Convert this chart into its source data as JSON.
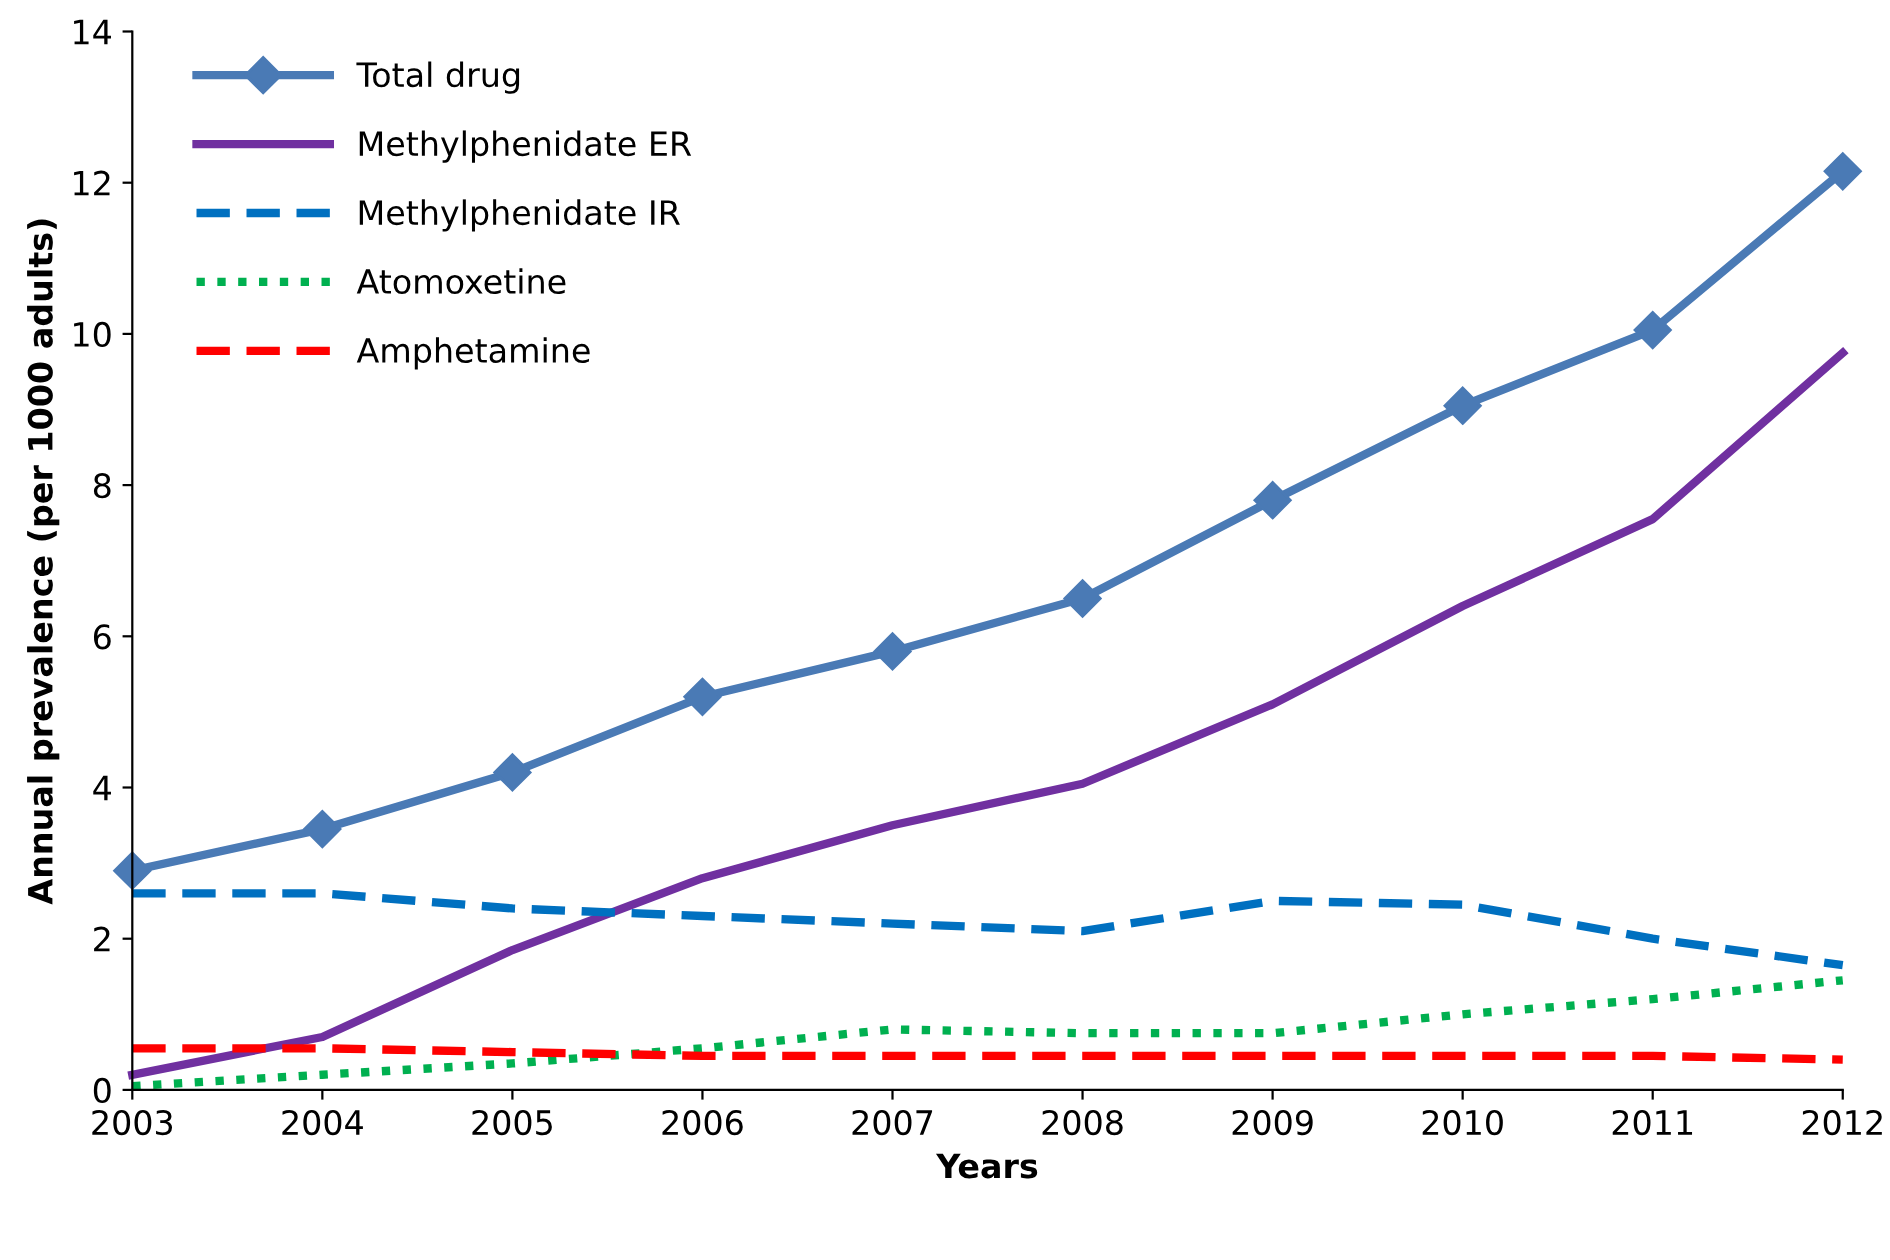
{
  "chart_data": {
    "type": "line",
    "xlabel": "Years",
    "ylabel": "Annual prevalence (per 1000 adults)",
    "x": [
      2003,
      2004,
      2005,
      2006,
      2007,
      2008,
      2009,
      2010,
      2011,
      2012
    ],
    "xlim": [
      2003,
      2012
    ],
    "xticks": [
      2003,
      2004,
      2005,
      2006,
      2007,
      2008,
      2009,
      2010,
      2011,
      2012
    ],
    "ylim": [
      0,
      14
    ],
    "yticks": [
      0,
      2,
      4,
      6,
      8,
      10,
      12,
      14
    ],
    "grid": false,
    "legend": "top left",
    "series": [
      {
        "name": "Total drug",
        "color": "#4a7ab5",
        "marker": "diamond",
        "line_style": "solid",
        "values": [
          2.9,
          3.45,
          4.2,
          5.2,
          5.8,
          6.5,
          7.8,
          9.05,
          10.05,
          12.15
        ]
      },
      {
        "name": "Methylphenidate ER",
        "color": "#7030a0",
        "marker": "none",
        "line_style": "solid",
        "values": [
          0.2,
          0.7,
          1.85,
          2.8,
          3.5,
          4.05,
          5.1,
          6.4,
          7.55,
          9.75
        ]
      },
      {
        "name": "Methylphenidate IR",
        "color": "#0070c0",
        "marker": "none",
        "line_style": "dashed",
        "values": [
          2.6,
          2.6,
          2.4,
          2.3,
          2.2,
          2.1,
          2.5,
          2.45,
          2.0,
          1.65
        ]
      },
      {
        "name": "Atomoxetine",
        "color": "#00b050",
        "marker": "none",
        "line_style": "dotted",
        "values": [
          0.05,
          0.2,
          0.35,
          0.55,
          0.8,
          0.75,
          0.75,
          1.0,
          1.2,
          1.45
        ]
      },
      {
        "name": "Amphetamine",
        "color": "#ff0000",
        "marker": "none",
        "line_style": "dashed",
        "values": [
          0.55,
          0.55,
          0.5,
          0.45,
          0.45,
          0.45,
          0.45,
          0.45,
          0.45,
          0.4
        ]
      }
    ]
  }
}
